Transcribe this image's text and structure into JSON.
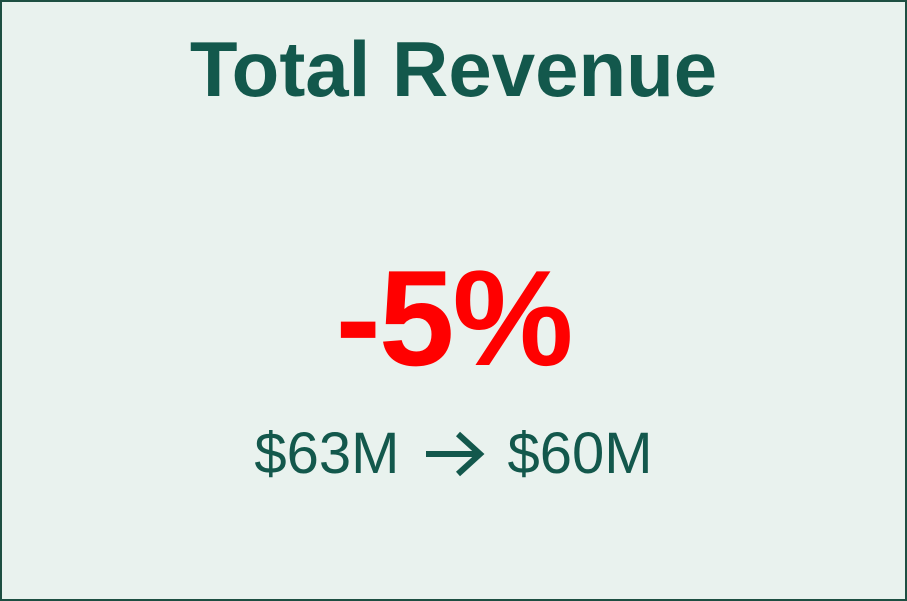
{
  "card": {
    "title": "Total Revenue",
    "change": "-5%",
    "from": "$63M",
    "to": "$60M"
  }
}
